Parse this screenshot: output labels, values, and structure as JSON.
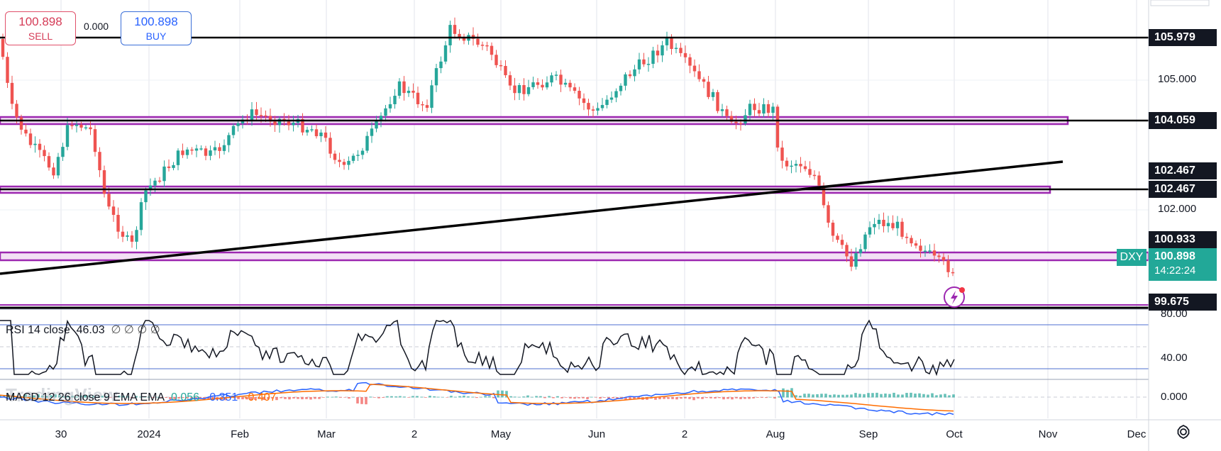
{
  "symbol": "DXY",
  "trade_panel": {
    "sell_price": "100.898",
    "sell_label": "SELL",
    "buy_price": "100.898",
    "buy_label": "BUY",
    "spread": "0.000"
  },
  "current": {
    "price": "100.898",
    "countdown": "14:22:24"
  },
  "price_axis": {
    "ticks": [
      "105.000",
      "102.000"
    ],
    "level_badges": [
      "105.979",
      "104.059",
      "102.467",
      "102.467",
      "100.933",
      "99.675"
    ]
  },
  "time_axis": [
    "30",
    "2024",
    "Feb",
    "Mar",
    "2",
    "May",
    "Jun",
    "2",
    "Aug",
    "Sep",
    "Oct",
    "Nov",
    "Dec"
  ],
  "rsi": {
    "label": "RSI 14 close",
    "value": "46.03",
    "extra": "∅ ∅ ∅ ∅",
    "ticks": [
      "80.00",
      "40.00"
    ]
  },
  "macd": {
    "label": "MACD 12 26 close 9 EMA EMA",
    "hist": "0.056",
    "macd": "-0.351",
    "signal": "-0.407",
    "tick": "0.000"
  },
  "watermark": "TradingView",
  "colors": {
    "up": "#26a69a",
    "down": "#ef5350",
    "zone_border": "#9c27b0",
    "zone_fill": "#f3e0f5",
    "current_tag": "#22a898",
    "badge_dark": "#131722",
    "macd_line": "#2962ff",
    "signal_line": "#ff6d00"
  },
  "icons": [
    "lightning-alert-icon",
    "settings-gear-icon"
  ]
}
